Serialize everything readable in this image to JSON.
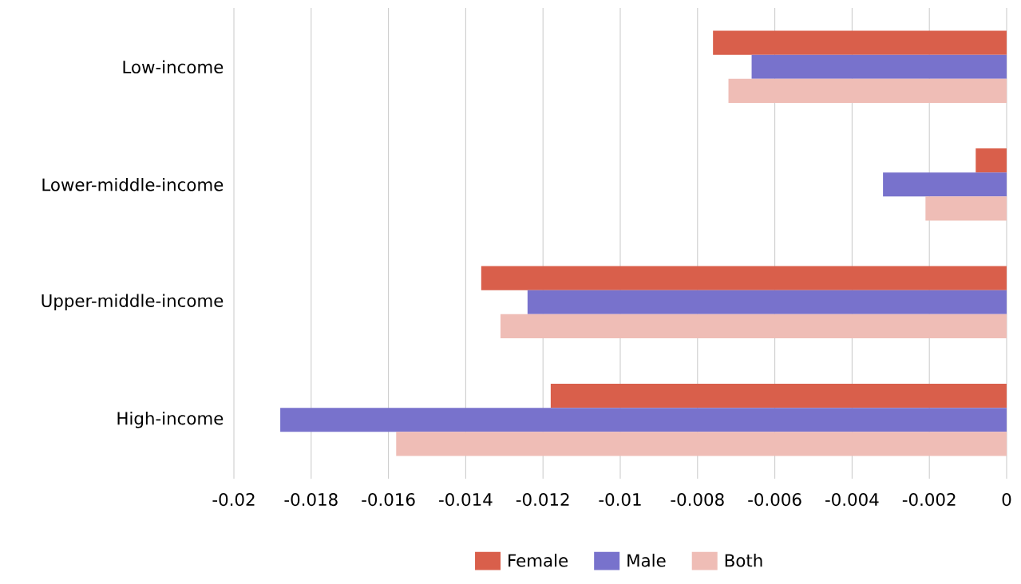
{
  "chart_data": {
    "type": "bar",
    "orientation": "horizontal",
    "categories": [
      "Low-income",
      "Lower-middle-income",
      "Upper-middle-income",
      "High-income"
    ],
    "series": [
      {
        "name": "Female",
        "color": "#d95f4b",
        "values": [
          -0.0076,
          -0.0008,
          -0.0136,
          -0.0118
        ]
      },
      {
        "name": "Male",
        "color": "#7872cc",
        "values": [
          -0.0066,
          -0.0032,
          -0.0124,
          -0.0188
        ]
      },
      {
        "name": "Both",
        "color": "#efbdb6",
        "values": [
          -0.0072,
          -0.0021,
          -0.0131,
          -0.0158
        ]
      }
    ],
    "xlim": [
      -0.02,
      0
    ],
    "xticks": [
      -0.02,
      -0.018,
      -0.016,
      -0.014,
      -0.012,
      -0.01,
      -0.008,
      -0.006,
      -0.004,
      -0.002,
      0
    ],
    "grid": "x",
    "legend": "bottom"
  }
}
